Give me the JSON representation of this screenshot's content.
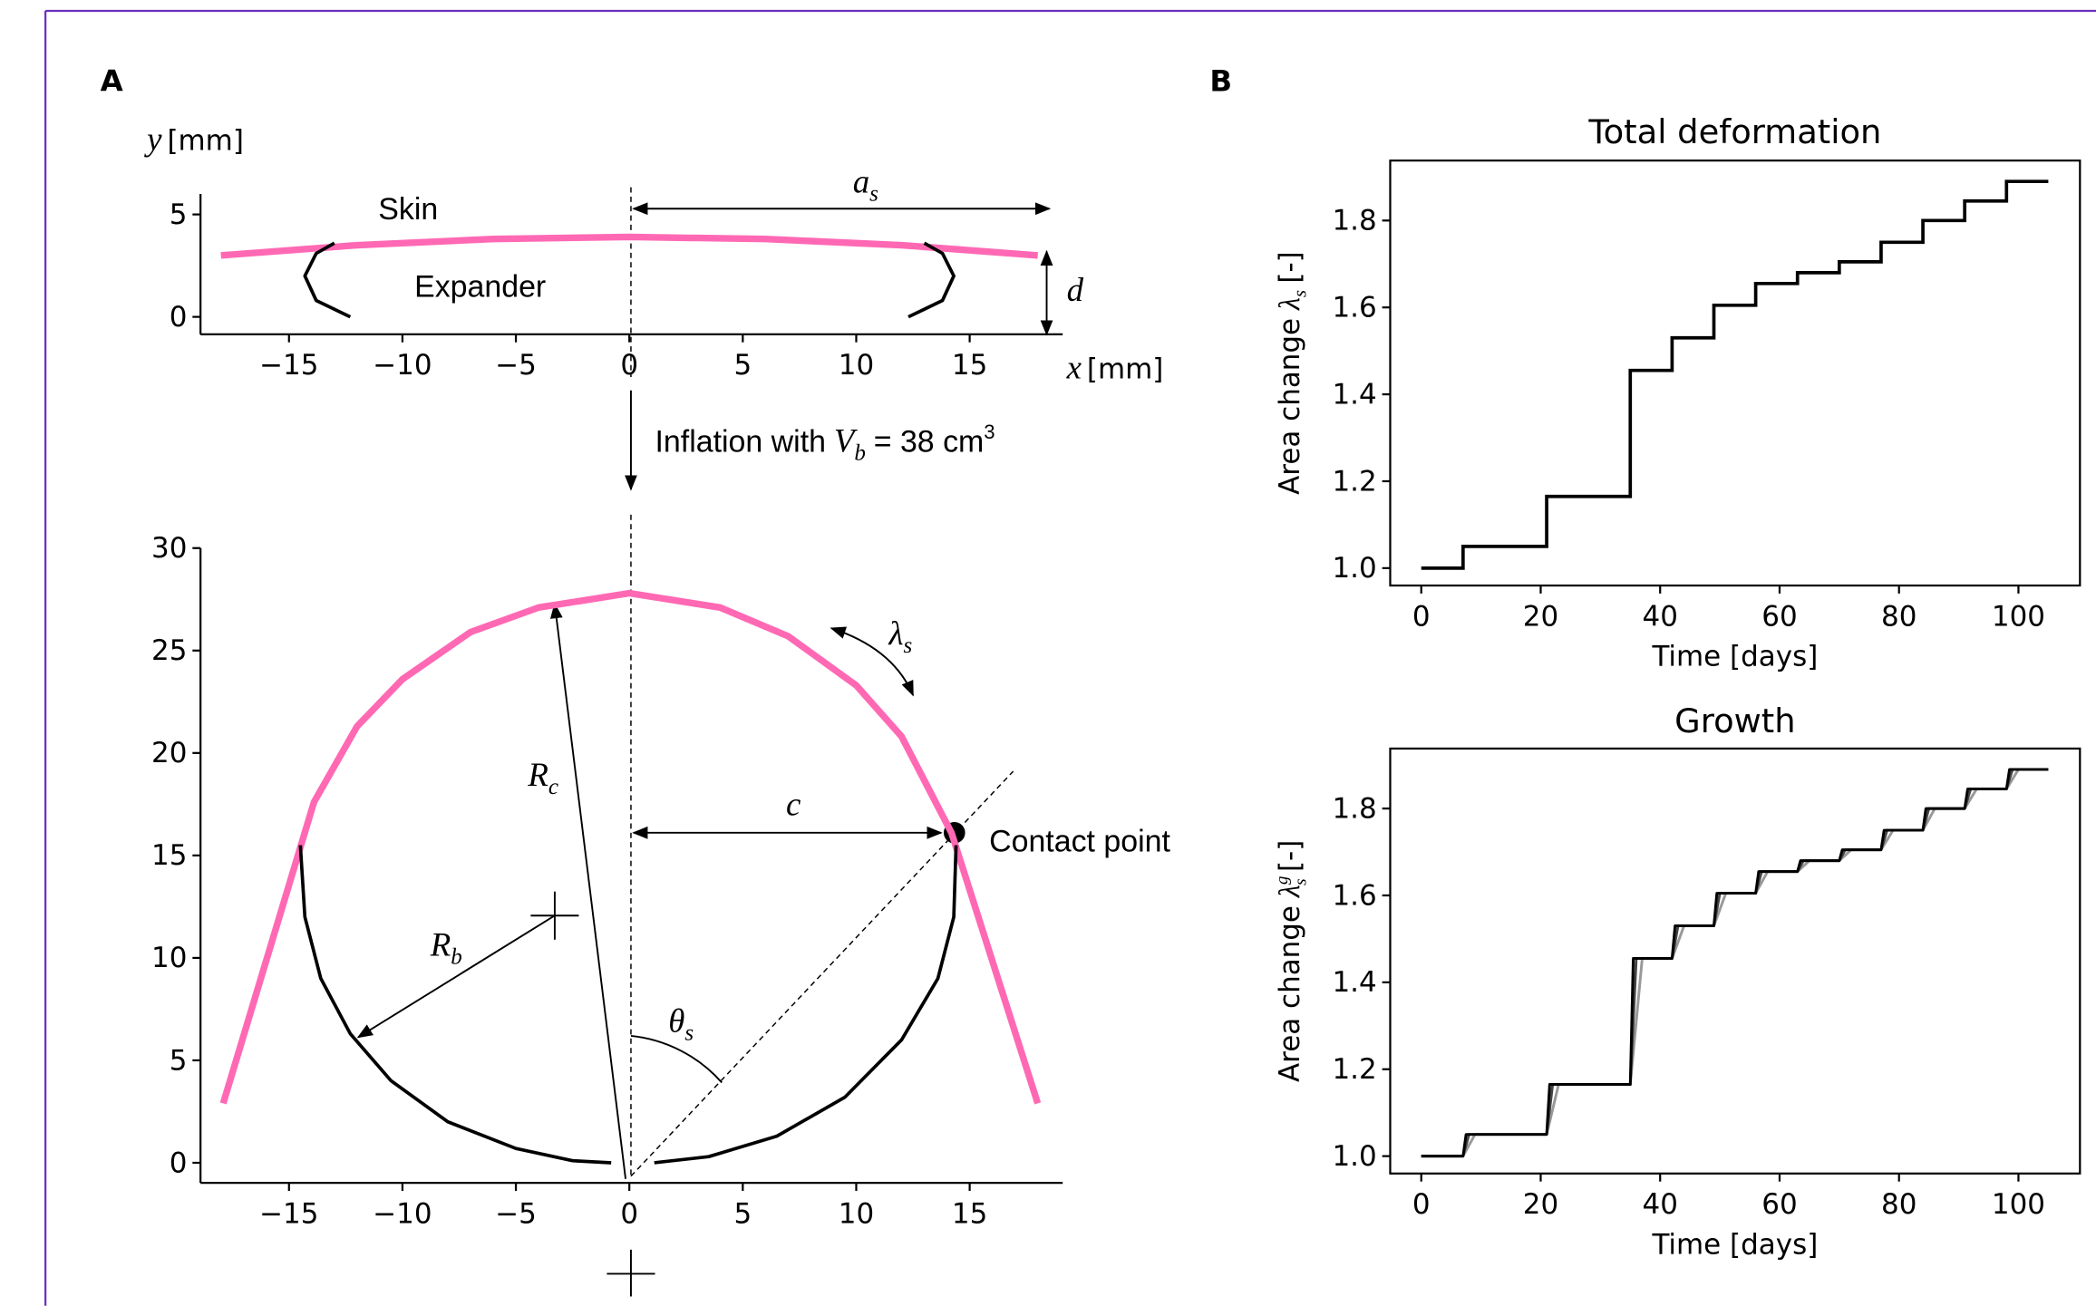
{
  "panels": [
    "A",
    "B"
  ],
  "chart_data": [
    {
      "type": "line",
      "ylabel": {
        "symbol": "y",
        "unit": "[mm]"
      },
      "xlabel": {
        "symbol": "x",
        "unit": "[mm]"
      },
      "xlim": [
        -18.9,
        19.1
      ],
      "ylim": [
        -0.85,
        6.0
      ],
      "xticks": [
        {
          "value": -15,
          "label": "−15"
        },
        {
          "value": -10,
          "label": "−10"
        },
        {
          "value": -5,
          "label": "−5"
        },
        0,
        5,
        10,
        15
      ],
      "yticks": [
        0,
        5
      ],
      "annotations": {
        "skin": "Skin",
        "expander": "Expander",
        "a_s": {
          "base": "a",
          "sub": "s"
        },
        "d": "d"
      },
      "series": [
        {
          "color": "#ff69b4",
          "x": [
            -18,
            -12,
            -6,
            0,
            6,
            12,
            18
          ],
          "values": [
            3.0,
            3.5,
            3.8,
            3.9,
            3.8,
            3.5,
            3.0
          ]
        },
        {
          "color": "#000000",
          "x": [
            -12.3,
            -13.8,
            -14.3,
            -13.8,
            -13,
            0,
            13,
            13.8,
            14.3,
            13.8,
            12.3
          ],
          "values": [
            0,
            0.8,
            2,
            3.1,
            3.6,
            null,
            3.6,
            3.1,
            2,
            0.8,
            0
          ]
        }
      ]
    },
    {
      "type": "line",
      "xlim": [
        -18.9,
        19.1
      ],
      "ylim": [
        -0.98,
        30
      ],
      "xticks": [
        {
          "value": -15,
          "label": "−15"
        },
        {
          "value": -10,
          "label": "−10"
        },
        {
          "value": -5,
          "label": "−5"
        },
        0,
        5,
        10,
        15
      ],
      "yticks": [
        0,
        5,
        10,
        15,
        20,
        25,
        30
      ],
      "annotations": {
        "inflation": {
          "text": "Inflation with",
          "symbol": "V",
          "sub": "b",
          "rest": "= 38 cm",
          "sup": "3"
        },
        "r_c": {
          "base": "R",
          "sub": "c"
        },
        "r_b": {
          "base": "R",
          "sub": "b"
        },
        "c": "c",
        "theta_s": {
          "base": "θ",
          "sub": "s"
        },
        "lambda_s": {
          "base": "λ",
          "sub": "s"
        },
        "contact": "Contact point"
      },
      "series": [
        {
          "color": "#ff69b4",
          "x": [
            -17.9,
            -13.9,
            -12,
            -10,
            -7,
            -4,
            0,
            4,
            7,
            10,
            12,
            14.2,
            18
          ],
          "values": [
            2.9,
            17.6,
            21.3,
            23.6,
            25.9,
            27.1,
            27.8,
            27.1,
            25.7,
            23.3,
            20.8,
            16.1,
            2.9
          ]
        },
        {
          "color": "#000000",
          "x": [
            -14.5,
            -14.3,
            -13.6,
            -12.3,
            -10.5,
            -8,
            -5,
            -2.5,
            -0.8,
            0,
            1.1,
            3.5,
            6.5,
            9.5,
            12,
            13.6,
            14.3,
            14.4
          ],
          "values": [
            15.5,
            12,
            9,
            6.3,
            4,
            2,
            0.7,
            0.1,
            0,
            null,
            0,
            0.3,
            1.3,
            3.2,
            6,
            9,
            12,
            15.5
          ]
        }
      ]
    },
    {
      "type": "step",
      "title": "Total deformation",
      "xlabel": "Time [days]",
      "ylabel": {
        "text": "Area change",
        "symbol": "λ",
        "sub": "s",
        "unit": "[-]"
      },
      "frame": true,
      "xlim": [
        -5.2,
        110.3
      ],
      "ylim": [
        0.96,
        1.938
      ],
      "xticks": [
        0,
        20,
        40,
        60,
        80,
        100
      ],
      "yticks": [
        {
          "value": 1,
          "label": "1.0"
        },
        1.2,
        1.4,
        1.6,
        1.8
      ],
      "series": [
        {
          "color": "#000000",
          "x": [
            0,
            7,
            21,
            35,
            42,
            49,
            56,
            63,
            70,
            77,
            84,
            91,
            98,
            105
          ],
          "values": [
            1.0,
            1.05,
            1.165,
            1.455,
            1.53,
            1.605,
            1.655,
            1.68,
            1.705,
            1.75,
            1.8,
            1.845,
            1.89,
            1.89
          ]
        }
      ]
    },
    {
      "type": "line",
      "title": "Growth",
      "xlabel": "Time [days]",
      "ylabel": {
        "text": "Area change",
        "symbol": "λ",
        "sup": "g",
        "sub": "s",
        "unit": "[-]"
      },
      "frame": true,
      "xlim": [
        -5.2,
        110.3
      ],
      "ylim": [
        0.96,
        1.938
      ],
      "xticks": [
        0,
        20,
        40,
        60,
        80,
        100
      ],
      "yticks": [
        {
          "value": 1,
          "label": "1.0"
        },
        1.2,
        1.4,
        1.6,
        1.8
      ],
      "series": [
        {
          "color": "#999999",
          "x": [
            0,
            7,
            9,
            21,
            23,
            35,
            37,
            42,
            44,
            49,
            51,
            56,
            58,
            63,
            65,
            70,
            72,
            77,
            79,
            84,
            86,
            91,
            93,
            98,
            100,
            105
          ],
          "values": [
            1.0,
            1.0,
            1.05,
            1.05,
            1.165,
            1.165,
            1.455,
            1.455,
            1.53,
            1.53,
            1.605,
            1.605,
            1.655,
            1.655,
            1.68,
            1.68,
            1.705,
            1.705,
            1.75,
            1.75,
            1.8,
            1.8,
            1.845,
            1.845,
            1.89,
            1.89
          ]
        },
        {
          "color": "#444444",
          "x": [
            0,
            7,
            8,
            21,
            22,
            35,
            36,
            42,
            43,
            49,
            50,
            56,
            57,
            63,
            64,
            70,
            71,
            77,
            78,
            84,
            85,
            91,
            92,
            98,
            99,
            105
          ],
          "values": [
            1.0,
            1.0,
            1.05,
            1.05,
            1.165,
            1.165,
            1.455,
            1.455,
            1.53,
            1.53,
            1.605,
            1.605,
            1.655,
            1.655,
            1.68,
            1.68,
            1.705,
            1.705,
            1.75,
            1.75,
            1.8,
            1.8,
            1.845,
            1.845,
            1.89,
            1.89
          ]
        },
        {
          "color": "#000000",
          "x": [
            0,
            7,
            7.5,
            21,
            21.5,
            35,
            35.5,
            42,
            42.5,
            49,
            49.5,
            56,
            56.5,
            63,
            63.5,
            70,
            70.5,
            77,
            77.5,
            84,
            84.5,
            91,
            91.5,
            98,
            98.5,
            105
          ],
          "values": [
            1.0,
            1.0,
            1.05,
            1.05,
            1.165,
            1.165,
            1.455,
            1.455,
            1.53,
            1.53,
            1.605,
            1.605,
            1.655,
            1.655,
            1.68,
            1.68,
            1.705,
            1.705,
            1.75,
            1.75,
            1.8,
            1.8,
            1.845,
            1.845,
            1.89,
            1.89
          ]
        }
      ]
    }
  ]
}
